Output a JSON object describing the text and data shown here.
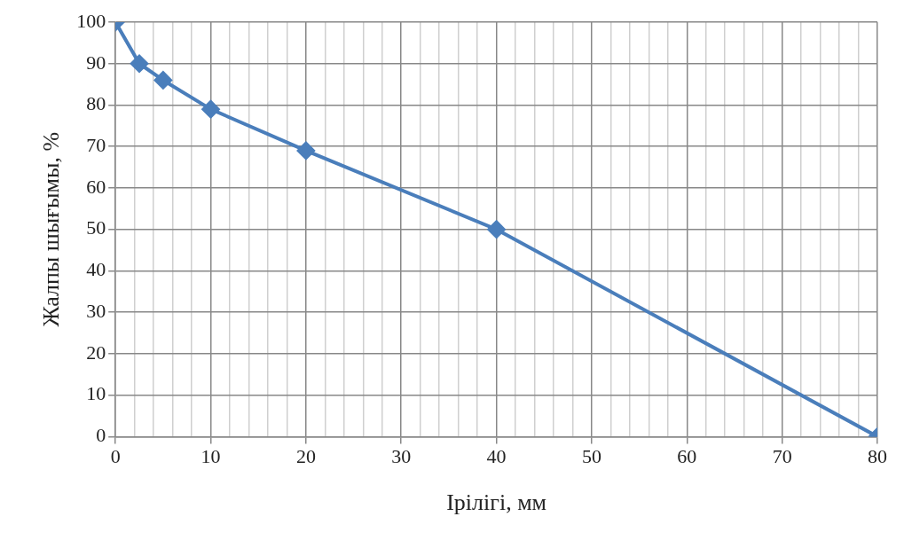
{
  "chart_data": {
    "type": "line",
    "xlabel": "Ірілігі, мм",
    "ylabel": "Жалпы шығымы, %",
    "x": [
      0,
      2.5,
      5,
      10,
      20,
      40,
      80
    ],
    "series": [
      {
        "color": "#4a7ebb",
        "values": [
          100,
          90,
          86,
          79,
          69,
          50,
          0
        ]
      }
    ],
    "xlim": [
      0,
      80
    ],
    "xticks": [
      0,
      {
        "value": 2,
        "label": null
      },
      {
        "value": 4,
        "label": null
      },
      {
        "value": 6,
        "label": null
      },
      {
        "value": 8,
        "label": null
      },
      10,
      {
        "value": 12,
        "label": null
      },
      {
        "value": 14,
        "label": null
      },
      {
        "value": 16,
        "label": null
      },
      {
        "value": 18,
        "label": null
      },
      20,
      {
        "value": 22,
        "label": null
      },
      {
        "value": 24,
        "label": null
      },
      {
        "value": 26,
        "label": null
      },
      {
        "value": 28,
        "label": null
      },
      30,
      {
        "value": 32,
        "label": null
      },
      {
        "value": 34,
        "label": null
      },
      {
        "value": 36,
        "label": null
      },
      {
        "value": 38,
        "label": null
      },
      40,
      {
        "value": 42,
        "label": null
      },
      {
        "value": 44,
        "label": null
      },
      {
        "value": 46,
        "label": null
      },
      {
        "value": 48,
        "label": null
      },
      50,
      {
        "value": 52,
        "label": null
      },
      {
        "value": 54,
        "label": null
      },
      {
        "value": 56,
        "label": null
      },
      {
        "value": 58,
        "label": null
      },
      60,
      {
        "value": 62,
        "label": null
      },
      {
        "value": 64,
        "label": null
      },
      {
        "value": 66,
        "label": null
      },
      {
        "value": 68,
        "label": null
      },
      70,
      {
        "value": 72,
        "label": null
      },
      {
        "value": 74,
        "label": null
      },
      {
        "value": 76,
        "label": null
      },
      {
        "value": 78,
        "label": null
      },
      80
    ],
    "ylim": [
      0,
      100
    ],
    "yticks": [
      0,
      10,
      20,
      30,
      40,
      50,
      60,
      70,
      80,
      90,
      100
    ],
    "grid": true,
    "legend": false,
    "marker": "diamond",
    "line_style": "solid"
  }
}
